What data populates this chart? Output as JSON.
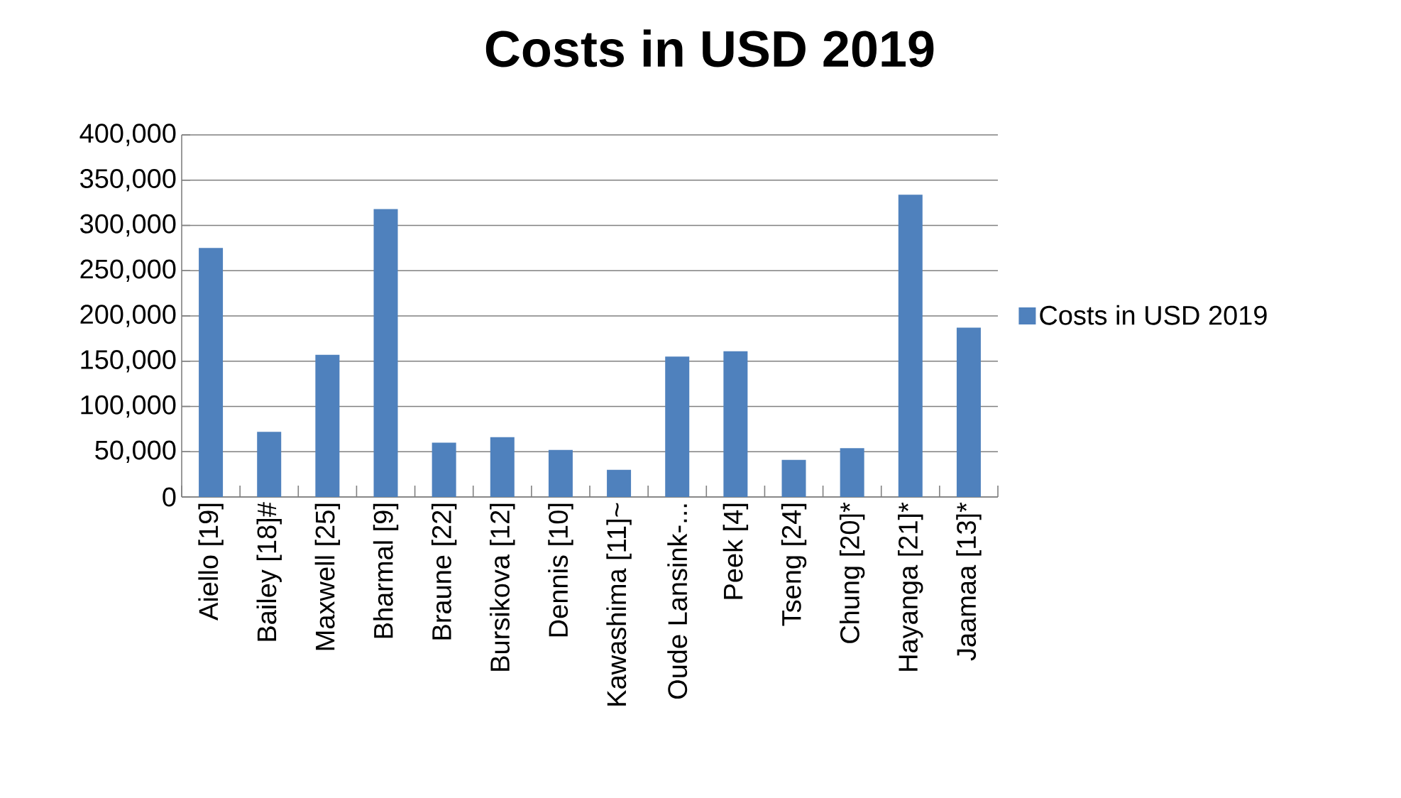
{
  "chart_data": {
    "type": "bar",
    "title": "Costs in USD 2019",
    "categories": [
      "Aiello [19]",
      "Bailey [18]#",
      "Maxwell [25]",
      "Bharmal [9]",
      "Braune [22]",
      "Bursikova [12]",
      "Dennis [10]",
      "Kawashima [11]~",
      "Oude Lansink-...",
      "Peek [4]",
      "Tseng [24]",
      "Chung [20]*",
      "Hayanga [21]*",
      "Jaamaa [13]*"
    ],
    "series": [
      {
        "name": "Costs in USD 2019",
        "color": "#4f81bd",
        "values": [
          275000,
          72000,
          157000,
          318000,
          60000,
          66000,
          52000,
          30000,
          155000,
          161000,
          41000,
          54000,
          334000,
          187000
        ]
      }
    ],
    "ylim": [
      0,
      400000
    ],
    "yticks": [
      {
        "value": 0,
        "label": "0"
      },
      {
        "value": 50000,
        "label": "50,000"
      },
      {
        "value": 100000,
        "label": "100,000"
      },
      {
        "value": 150000,
        "label": "150,000"
      },
      {
        "value": 200000,
        "label": "200,000"
      },
      {
        "value": 250000,
        "label": "250,000"
      },
      {
        "value": 300000,
        "label": "300,000"
      },
      {
        "value": 350000,
        "label": "350,000"
      },
      {
        "value": 400000,
        "label": "400,000"
      }
    ],
    "grid": "y",
    "legend": "right"
  }
}
